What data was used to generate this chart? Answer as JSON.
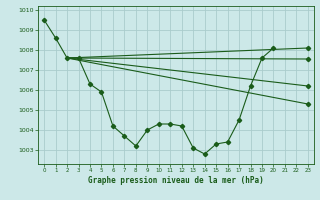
{
  "title": "Graphe pression niveau de la mer (hPa)",
  "background_color": "#cce8e8",
  "grid_color": "#aacccc",
  "line_color": "#1a5c1a",
  "xlim": [
    -0.5,
    23.5
  ],
  "ylim": [
    1002.3,
    1010.2
  ],
  "yticks": [
    1003,
    1004,
    1005,
    1006,
    1007,
    1008,
    1009,
    1010
  ],
  "xticks": [
    0,
    1,
    2,
    3,
    4,
    5,
    6,
    7,
    8,
    9,
    10,
    11,
    12,
    13,
    14,
    15,
    16,
    17,
    18,
    19,
    20,
    21,
    22,
    23
  ],
  "main_line": {
    "x": [
      0,
      1,
      2,
      3,
      4,
      5,
      6,
      7,
      8,
      9,
      10,
      11,
      12,
      13,
      14,
      15,
      16,
      17,
      18,
      19,
      20,
      21,
      22,
      23
    ],
    "y": [
      1009.5,
      1008.6,
      1007.6,
      1007.6,
      1006.3,
      1005.9,
      1004.2,
      1003.7,
      1003.2,
      1004.0,
      1004.3,
      1004.3,
      1004.2,
      1003.1,
      1002.8,
      1003.3,
      1003.4,
      1004.5,
      1006.2,
      1007.6,
      1008.1,
      null,
      null,
      null
    ]
  },
  "smooth_line1": {
    "x": [
      2,
      23
    ],
    "y": [
      1007.6,
      1008.1
    ]
  },
  "smooth_line2": {
    "x": [
      2,
      23
    ],
    "y": [
      1007.6,
      1007.55
    ]
  },
  "smooth_line3": {
    "x": [
      2,
      23
    ],
    "y": [
      1007.6,
      1006.2
    ]
  },
  "smooth_line4": {
    "x": [
      2,
      23
    ],
    "y": [
      1007.6,
      1005.3
    ]
  }
}
